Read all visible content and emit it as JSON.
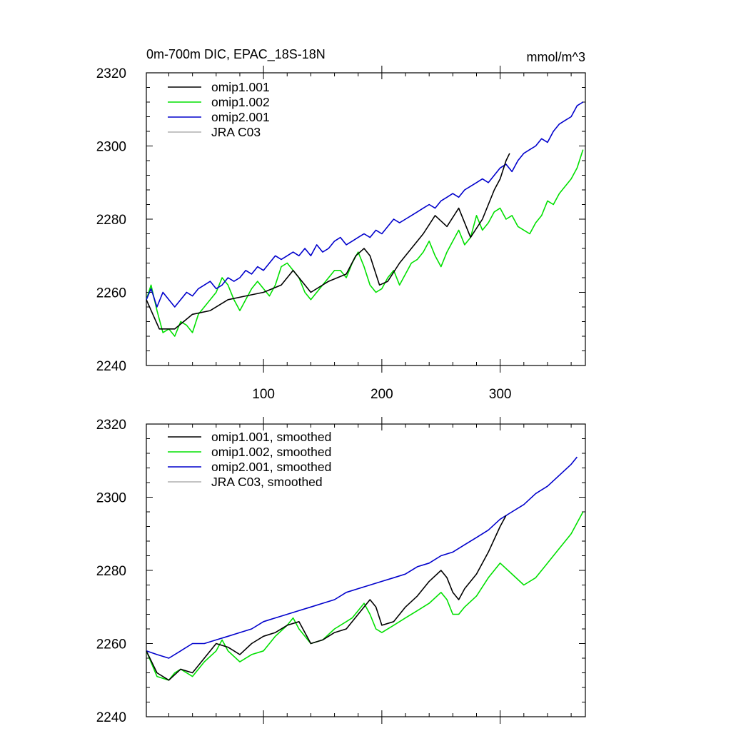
{
  "chart_data": [
    {
      "type": "line",
      "title": "0m-700m DIC, EPAC_18S-18N",
      "units": "mmol/m^3",
      "xlabel": "",
      "ylabel": "",
      "xlim": [
        1,
        372
      ],
      "ylim": [
        2240,
        2320
      ],
      "xticks": [
        100,
        200,
        300
      ],
      "xtick_labels": [
        "100",
        "200",
        "300"
      ],
      "yticks": [
        2240,
        2260,
        2280,
        2300,
        2320
      ],
      "ytick_labels": [
        "2240",
        "2260",
        "2280",
        "2300",
        "2320"
      ],
      "legend_position": "top-left",
      "series": [
        {
          "name": "omip1.001",
          "color": "#000000",
          "x": [
            1,
            12,
            25,
            40,
            55,
            70,
            85,
            100,
            115,
            125,
            140,
            155,
            170,
            178,
            185,
            190,
            198,
            205,
            215,
            225,
            235,
            245,
            255,
            265,
            275,
            285,
            295,
            300,
            305,
            308
          ],
          "values": [
            2258,
            2250,
            2250,
            2254,
            2255,
            2258,
            2259,
            2260,
            2262,
            2266,
            2260,
            2263,
            2265,
            2270,
            2272,
            2270,
            2262,
            2263,
            2268,
            2272,
            2276,
            2281,
            2278,
            2283,
            2275,
            2280,
            2288,
            2291,
            2296,
            2298
          ]
        },
        {
          "name": "omip1.002",
          "color": "#00e000",
          "x": [
            1,
            5,
            10,
            15,
            20,
            25,
            30,
            35,
            40,
            45,
            50,
            55,
            60,
            65,
            70,
            75,
            80,
            85,
            90,
            95,
            100,
            105,
            110,
            115,
            120,
            125,
            130,
            135,
            140,
            145,
            150,
            155,
            160,
            165,
            170,
            175,
            180,
            185,
            190,
            195,
            200,
            205,
            210,
            215,
            220,
            225,
            230,
            235,
            240,
            245,
            250,
            255,
            260,
            265,
            270,
            275,
            280,
            285,
            290,
            295,
            300,
            305,
            310,
            315,
            320,
            325,
            330,
            335,
            340,
            345,
            350,
            355,
            360,
            365,
            370
          ],
          "values": [
            2258,
            2262,
            2255,
            2249,
            2250,
            2248,
            2252,
            2251,
            2249,
            2254,
            2256,
            2258,
            2260,
            2264,
            2262,
            2258,
            2255,
            2258,
            2261,
            2263,
            2261,
            2259,
            2262,
            2267,
            2268,
            2266,
            2264,
            2260,
            2258,
            2260,
            2262,
            2264,
            2266,
            2266,
            2264,
            2268,
            2271,
            2267,
            2262,
            2260,
            2261,
            2264,
            2266,
            2262,
            2265,
            2268,
            2269,
            2271,
            2274,
            2270,
            2267,
            2271,
            2274,
            2277,
            2273,
            2275,
            2281,
            2277,
            2279,
            2282,
            2283,
            2280,
            2281,
            2278,
            2277,
            2276,
            2279,
            2281,
            2285,
            2284,
            2287,
            2289,
            2291,
            2294,
            2299
          ]
        },
        {
          "name": "omip2.001",
          "color": "#0000cc",
          "x": [
            1,
            5,
            10,
            15,
            20,
            25,
            30,
            35,
            40,
            45,
            50,
            55,
            60,
            65,
            70,
            75,
            80,
            85,
            90,
            95,
            100,
            105,
            110,
            115,
            120,
            125,
            130,
            135,
            140,
            145,
            150,
            155,
            160,
            165,
            170,
            175,
            180,
            185,
            190,
            195,
            200,
            205,
            210,
            215,
            220,
            225,
            230,
            235,
            240,
            245,
            250,
            255,
            260,
            265,
            270,
            275,
            280,
            285,
            290,
            295,
            300,
            305,
            310,
            315,
            320,
            325,
            330,
            335,
            340,
            345,
            350,
            355,
            360,
            365,
            370
          ],
          "values": [
            2258,
            2261,
            2256,
            2260,
            2258,
            2256,
            2258,
            2260,
            2259,
            2261,
            2262,
            2263,
            2261,
            2262,
            2264,
            2263,
            2264,
            2266,
            2265,
            2267,
            2266,
            2268,
            2270,
            2269,
            2270,
            2271,
            2270,
            2272,
            2270,
            2273,
            2271,
            2272,
            2274,
            2275,
            2273,
            2274,
            2275,
            2276,
            2275,
            2277,
            2276,
            2278,
            2280,
            2279,
            2280,
            2281,
            2282,
            2283,
            2284,
            2283,
            2285,
            2286,
            2287,
            2286,
            2288,
            2289,
            2290,
            2291,
            2290,
            2292,
            2294,
            2295,
            2293,
            2296,
            2298,
            2299,
            2300,
            2302,
            2301,
            2304,
            2306,
            2307,
            2308,
            2311,
            2312
          ]
        },
        {
          "name": "JRA C03",
          "color": "#b0b0b0",
          "x": [],
          "values": []
        }
      ]
    },
    {
      "type": "line",
      "title": "",
      "xlabel": "",
      "ylabel": "",
      "xlim": [
        1,
        372
      ],
      "ylim": [
        2240,
        2320
      ],
      "xticks": [
        100,
        200,
        300
      ],
      "xtick_labels": [],
      "yticks": [
        2240,
        2260,
        2280,
        2300,
        2320
      ],
      "ytick_labels": [
        "2240",
        "2260",
        "2280",
        "2300",
        "2320"
      ],
      "legend_position": "top-left",
      "series": [
        {
          "name": "omip1.001, smoothed",
          "color": "#000000",
          "x": [
            1,
            10,
            20,
            30,
            40,
            50,
            60,
            70,
            80,
            90,
            100,
            110,
            120,
            130,
            140,
            150,
            160,
            170,
            175,
            180,
            185,
            190,
            195,
            200,
            210,
            220,
            230,
            240,
            250,
            255,
            260,
            265,
            270,
            280,
            290,
            300,
            305
          ],
          "values": [
            2258,
            2252,
            2250,
            2253,
            2252,
            2256,
            2260,
            2259,
            2257,
            2260,
            2262,
            2263,
            2265,
            2266,
            2260,
            2261,
            2263,
            2264,
            2266,
            2268,
            2270,
            2272,
            2270,
            2265,
            2266,
            2270,
            2273,
            2277,
            2280,
            2278,
            2274,
            2272,
            2275,
            2279,
            2285,
            2292,
            2295
          ]
        },
        {
          "name": "omip1.002, smoothed",
          "color": "#00e000",
          "x": [
            1,
            10,
            20,
            25,
            30,
            40,
            50,
            60,
            65,
            70,
            80,
            90,
            100,
            110,
            120,
            125,
            130,
            140,
            150,
            160,
            170,
            175,
            180,
            185,
            190,
            195,
            200,
            210,
            220,
            230,
            240,
            250,
            255,
            260,
            265,
            270,
            280,
            290,
            300,
            310,
            320,
            330,
            340,
            350,
            360,
            365,
            370
          ],
          "values": [
            2258,
            2251,
            2250,
            2252,
            2253,
            2251,
            2255,
            2258,
            2261,
            2258,
            2255,
            2257,
            2258,
            2262,
            2265,
            2267,
            2264,
            2260,
            2261,
            2264,
            2266,
            2267,
            2269,
            2271,
            2268,
            2264,
            2263,
            2265,
            2267,
            2269,
            2271,
            2274,
            2272,
            2268,
            2268,
            2270,
            2273,
            2278,
            2282,
            2279,
            2276,
            2278,
            2282,
            2286,
            2290,
            2293,
            2296
          ]
        },
        {
          "name": "omip2.001, smoothed",
          "color": "#0000cc",
          "x": [
            1,
            10,
            20,
            30,
            40,
            50,
            60,
            70,
            80,
            90,
            100,
            110,
            120,
            130,
            140,
            150,
            160,
            170,
            180,
            190,
            200,
            210,
            220,
            230,
            240,
            250,
            260,
            270,
            280,
            290,
            300,
            310,
            320,
            330,
            340,
            350,
            360,
            365
          ],
          "values": [
            2258,
            2257,
            2256,
            2258,
            2260,
            2260,
            2261,
            2262,
            2263,
            2264,
            2266,
            2267,
            2268,
            2269,
            2270,
            2271,
            2272,
            2274,
            2275,
            2276,
            2277,
            2278,
            2279,
            2281,
            2282,
            2284,
            2285,
            2287,
            2289,
            2291,
            2294,
            2296,
            2298,
            2301,
            2303,
            2306,
            2309,
            2311
          ]
        },
        {
          "name": "JRA C03, smoothed",
          "color": "#b0b0b0",
          "x": [],
          "values": []
        }
      ]
    }
  ]
}
